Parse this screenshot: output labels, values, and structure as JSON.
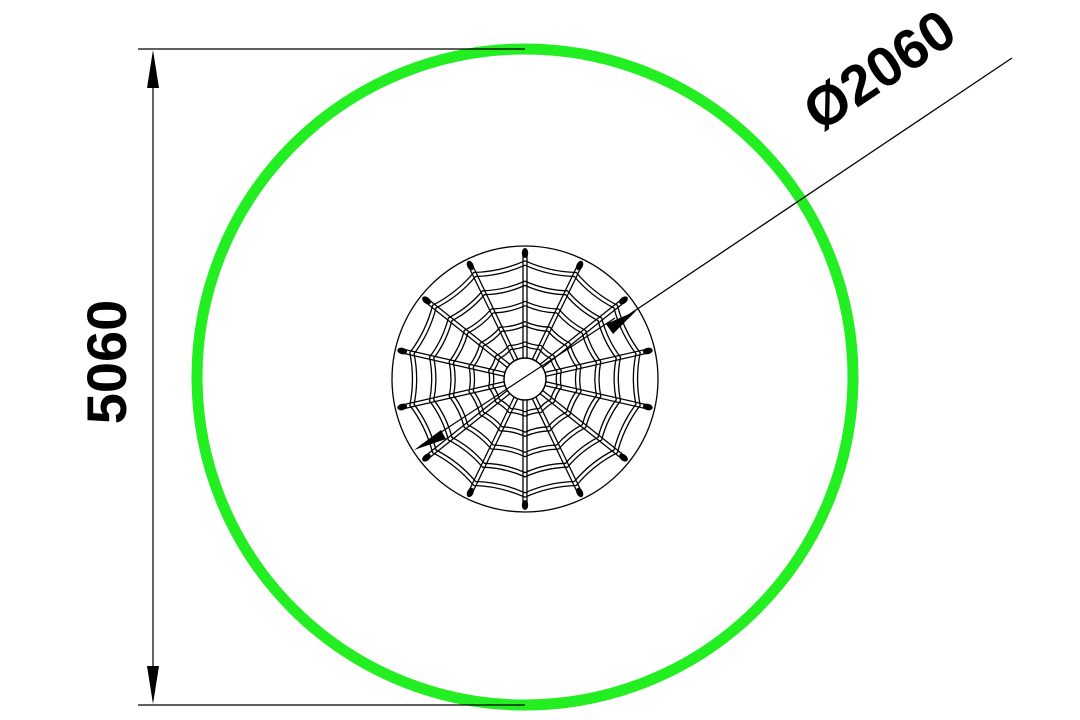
{
  "drawing": {
    "vertical_dimension": "5060",
    "diameter_dimension": "Ø2060"
  },
  "colors": {
    "outer_circle": "#22ee22",
    "lines": "#000000",
    "background": "#ffffff"
  },
  "web": {
    "spoke_count": 14,
    "ring_count": 5
  }
}
